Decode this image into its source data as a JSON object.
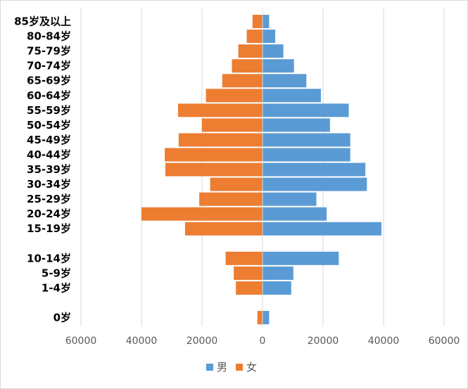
{
  "chart_data": {
    "type": "bar",
    "orientation": "horizontal",
    "stacked_diverging": true,
    "categories": [
      "85岁及以上",
      "80-84岁",
      "75-79岁",
      "70-74岁",
      "65-69岁",
      "60-64岁",
      "55-59岁",
      "50-54岁",
      "45-49岁",
      "40-44岁",
      "35-39岁",
      "30-34岁",
      "25-29岁",
      "20-24岁",
      "15-19岁",
      "",
      "10-14岁",
      "5-9岁",
      "1-4岁",
      "",
      "0岁"
    ],
    "series": [
      {
        "name": "男",
        "color": "#5B9BD5",
        "values": [
          2200,
          4200,
          6900,
          10400,
          14500,
          19300,
          28500,
          22300,
          29000,
          29000,
          34000,
          34500,
          17800,
          21200,
          39300,
          null,
          25200,
          10200,
          9500,
          null,
          2200
        ]
      },
      {
        "name": "女",
        "color": "#ED7D31",
        "values": [
          -3300,
          -5200,
          -8000,
          -10100,
          -13300,
          -18700,
          -27900,
          -20000,
          -27700,
          -32300,
          -32100,
          -17300,
          -20900,
          -40000,
          -25600,
          null,
          -12200,
          -9500,
          -8800,
          null,
          -1700
        ]
      }
    ],
    "xlim": [
      -60000,
      60000
    ],
    "xticks": [
      -60000,
      -40000,
      -20000,
      0,
      20000,
      40000,
      60000
    ],
    "xtick_labels": [
      "60000",
      "40000",
      "20000",
      "0",
      "20000",
      "40000",
      "60000"
    ],
    "grid": "vertical",
    "legend": "bottom-center",
    "title": "",
    "xlabel": "",
    "ylabel": ""
  }
}
